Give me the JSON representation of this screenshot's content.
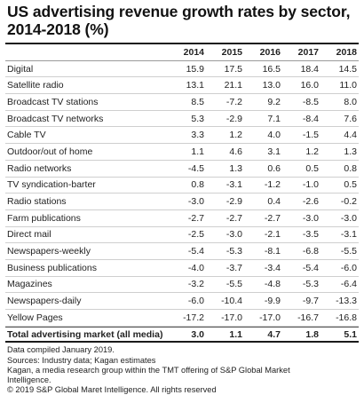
{
  "chart_data": {
    "type": "table",
    "title": "US advertising revenue growth rates by sector,\n2014-2018 (%)",
    "columns": [
      "2014",
      "2015",
      "2016",
      "2017",
      "2018"
    ],
    "rows": [
      {
        "label": "Digital",
        "values": [
          "15.9",
          "17.5",
          "16.5",
          "18.4",
          "14.5"
        ]
      },
      {
        "label": "Satellite radio",
        "values": [
          "13.1",
          "21.1",
          "13.0",
          "16.0",
          "11.0"
        ]
      },
      {
        "label": "Broadcast TV stations",
        "values": [
          "8.5",
          "-7.2",
          "9.2",
          "-8.5",
          "8.0"
        ]
      },
      {
        "label": "Broadcast TV networks",
        "values": [
          "5.3",
          "-2.9",
          "7.1",
          "-8.4",
          "7.6"
        ]
      },
      {
        "label": "Cable TV",
        "values": [
          "3.3",
          "1.2",
          "4.0",
          "-1.5",
          "4.4"
        ]
      },
      {
        "label": "Outdoor/out of home",
        "values": [
          "1.1",
          "4.6",
          "3.1",
          "1.2",
          "1.3"
        ]
      },
      {
        "label": "Radio networks",
        "values": [
          "-4.5",
          "1.3",
          "0.6",
          "0.5",
          "0.8"
        ]
      },
      {
        "label": "TV syndication-barter",
        "values": [
          "0.8",
          "-3.1",
          "-1.2",
          "-1.0",
          "0.5"
        ]
      },
      {
        "label": "Radio stations",
        "values": [
          "-3.0",
          "-2.9",
          "0.4",
          "-2.6",
          "-0.2"
        ]
      },
      {
        "label": "Farm publications",
        "values": [
          "-2.7",
          "-2.7",
          "-2.7",
          "-3.0",
          "-3.0"
        ]
      },
      {
        "label": "Direct mail",
        "values": [
          "-2.5",
          "-3.0",
          "-2.1",
          "-3.5",
          "-3.1"
        ]
      },
      {
        "label": "Newspapers-weekly",
        "values": [
          "-5.4",
          "-5.3",
          "-8.1",
          "-6.8",
          "-5.5"
        ]
      },
      {
        "label": "Business publications",
        "values": [
          "-4.0",
          "-3.7",
          "-3.4",
          "-5.4",
          "-6.0"
        ]
      },
      {
        "label": "Magazines",
        "values": [
          "-3.2",
          "-5.5",
          "-4.8",
          "-5.3",
          "-6.4"
        ]
      },
      {
        "label": "Newspapers-daily",
        "values": [
          "-6.0",
          "-10.4",
          "-9.9",
          "-9.7",
          "-13.3"
        ]
      },
      {
        "label": "Yellow Pages",
        "values": [
          "-17.2",
          "-17.0",
          "-17.0",
          "-16.7",
          "-16.8"
        ]
      }
    ],
    "total": {
      "label": "Total advertising market (all media)",
      "values": [
        "3.0",
        "1.1",
        "4.7",
        "1.8",
        "5.1"
      ]
    },
    "notes": [
      "Data compiled January 2019.",
      "Sources: Industry data; Kagan estimates",
      "Kagan, a media research group within the TMT offering of S&P Global Market",
      "Intelligence.",
      "© 2019 S&P Global Maret Intelligence. All rights reserved"
    ]
  }
}
